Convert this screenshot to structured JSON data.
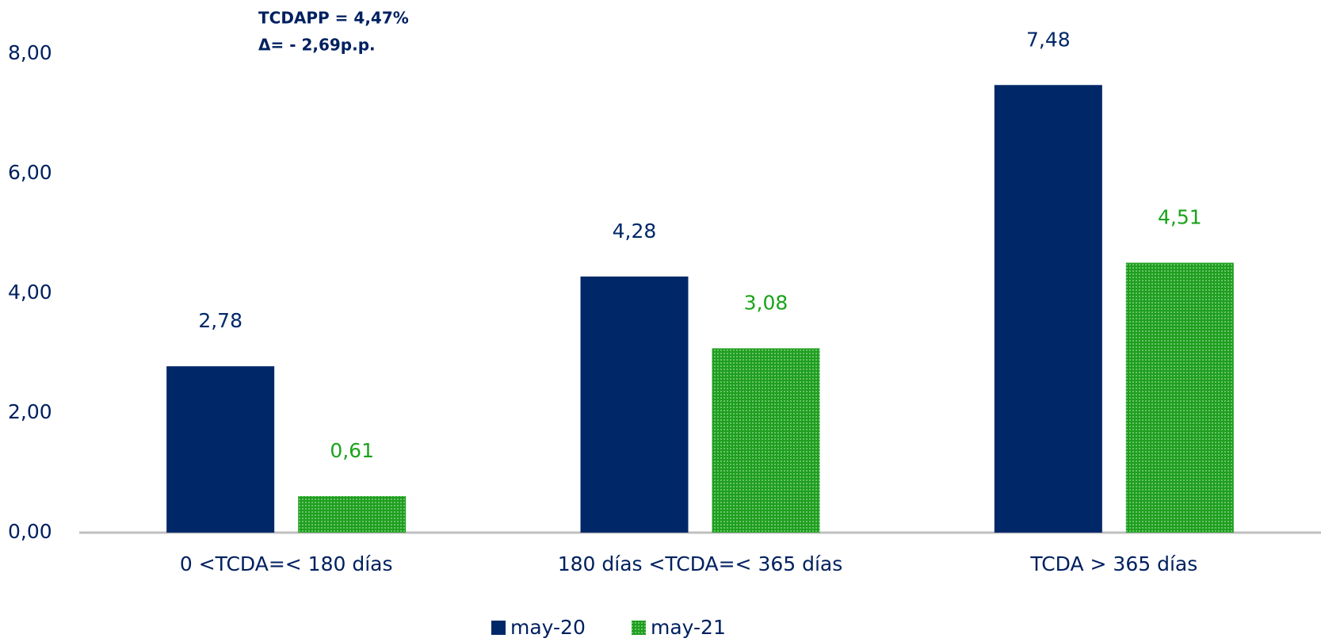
{
  "chart_data": {
    "type": "bar",
    "annotations": [
      "TCDAPP = 4,47%",
      "Δ=  - 2,69p.p."
    ],
    "categories": [
      "0 <TCDA=< 180 días",
      "180 días <TCDA=< 365 días",
      "TCDA > 365 días"
    ],
    "series": [
      {
        "name": "may-20",
        "color": "#002868",
        "label_color": "#002868",
        "values": [
          2.78,
          4.28,
          7.48
        ],
        "value_labels": [
          "2,78",
          "4,28",
          "7,48"
        ]
      },
      {
        "name": "may-21",
        "color": "#1f9e1f",
        "label_color": "#1aa31a",
        "pattern": "dots",
        "values": [
          0.61,
          3.08,
          4.51
        ],
        "value_labels": [
          "0,61",
          "3,08",
          "4,51"
        ]
      }
    ],
    "ylim": [
      0,
      8
    ],
    "yticks": [
      {
        "value": 0,
        "label": "0,00"
      },
      {
        "value": 2,
        "label": "2,00"
      },
      {
        "value": 4,
        "label": "4,00"
      },
      {
        "value": 6,
        "label": "6,00"
      },
      {
        "value": 8,
        "label": "8,00"
      }
    ],
    "grid": false,
    "legend": "bottom"
  }
}
